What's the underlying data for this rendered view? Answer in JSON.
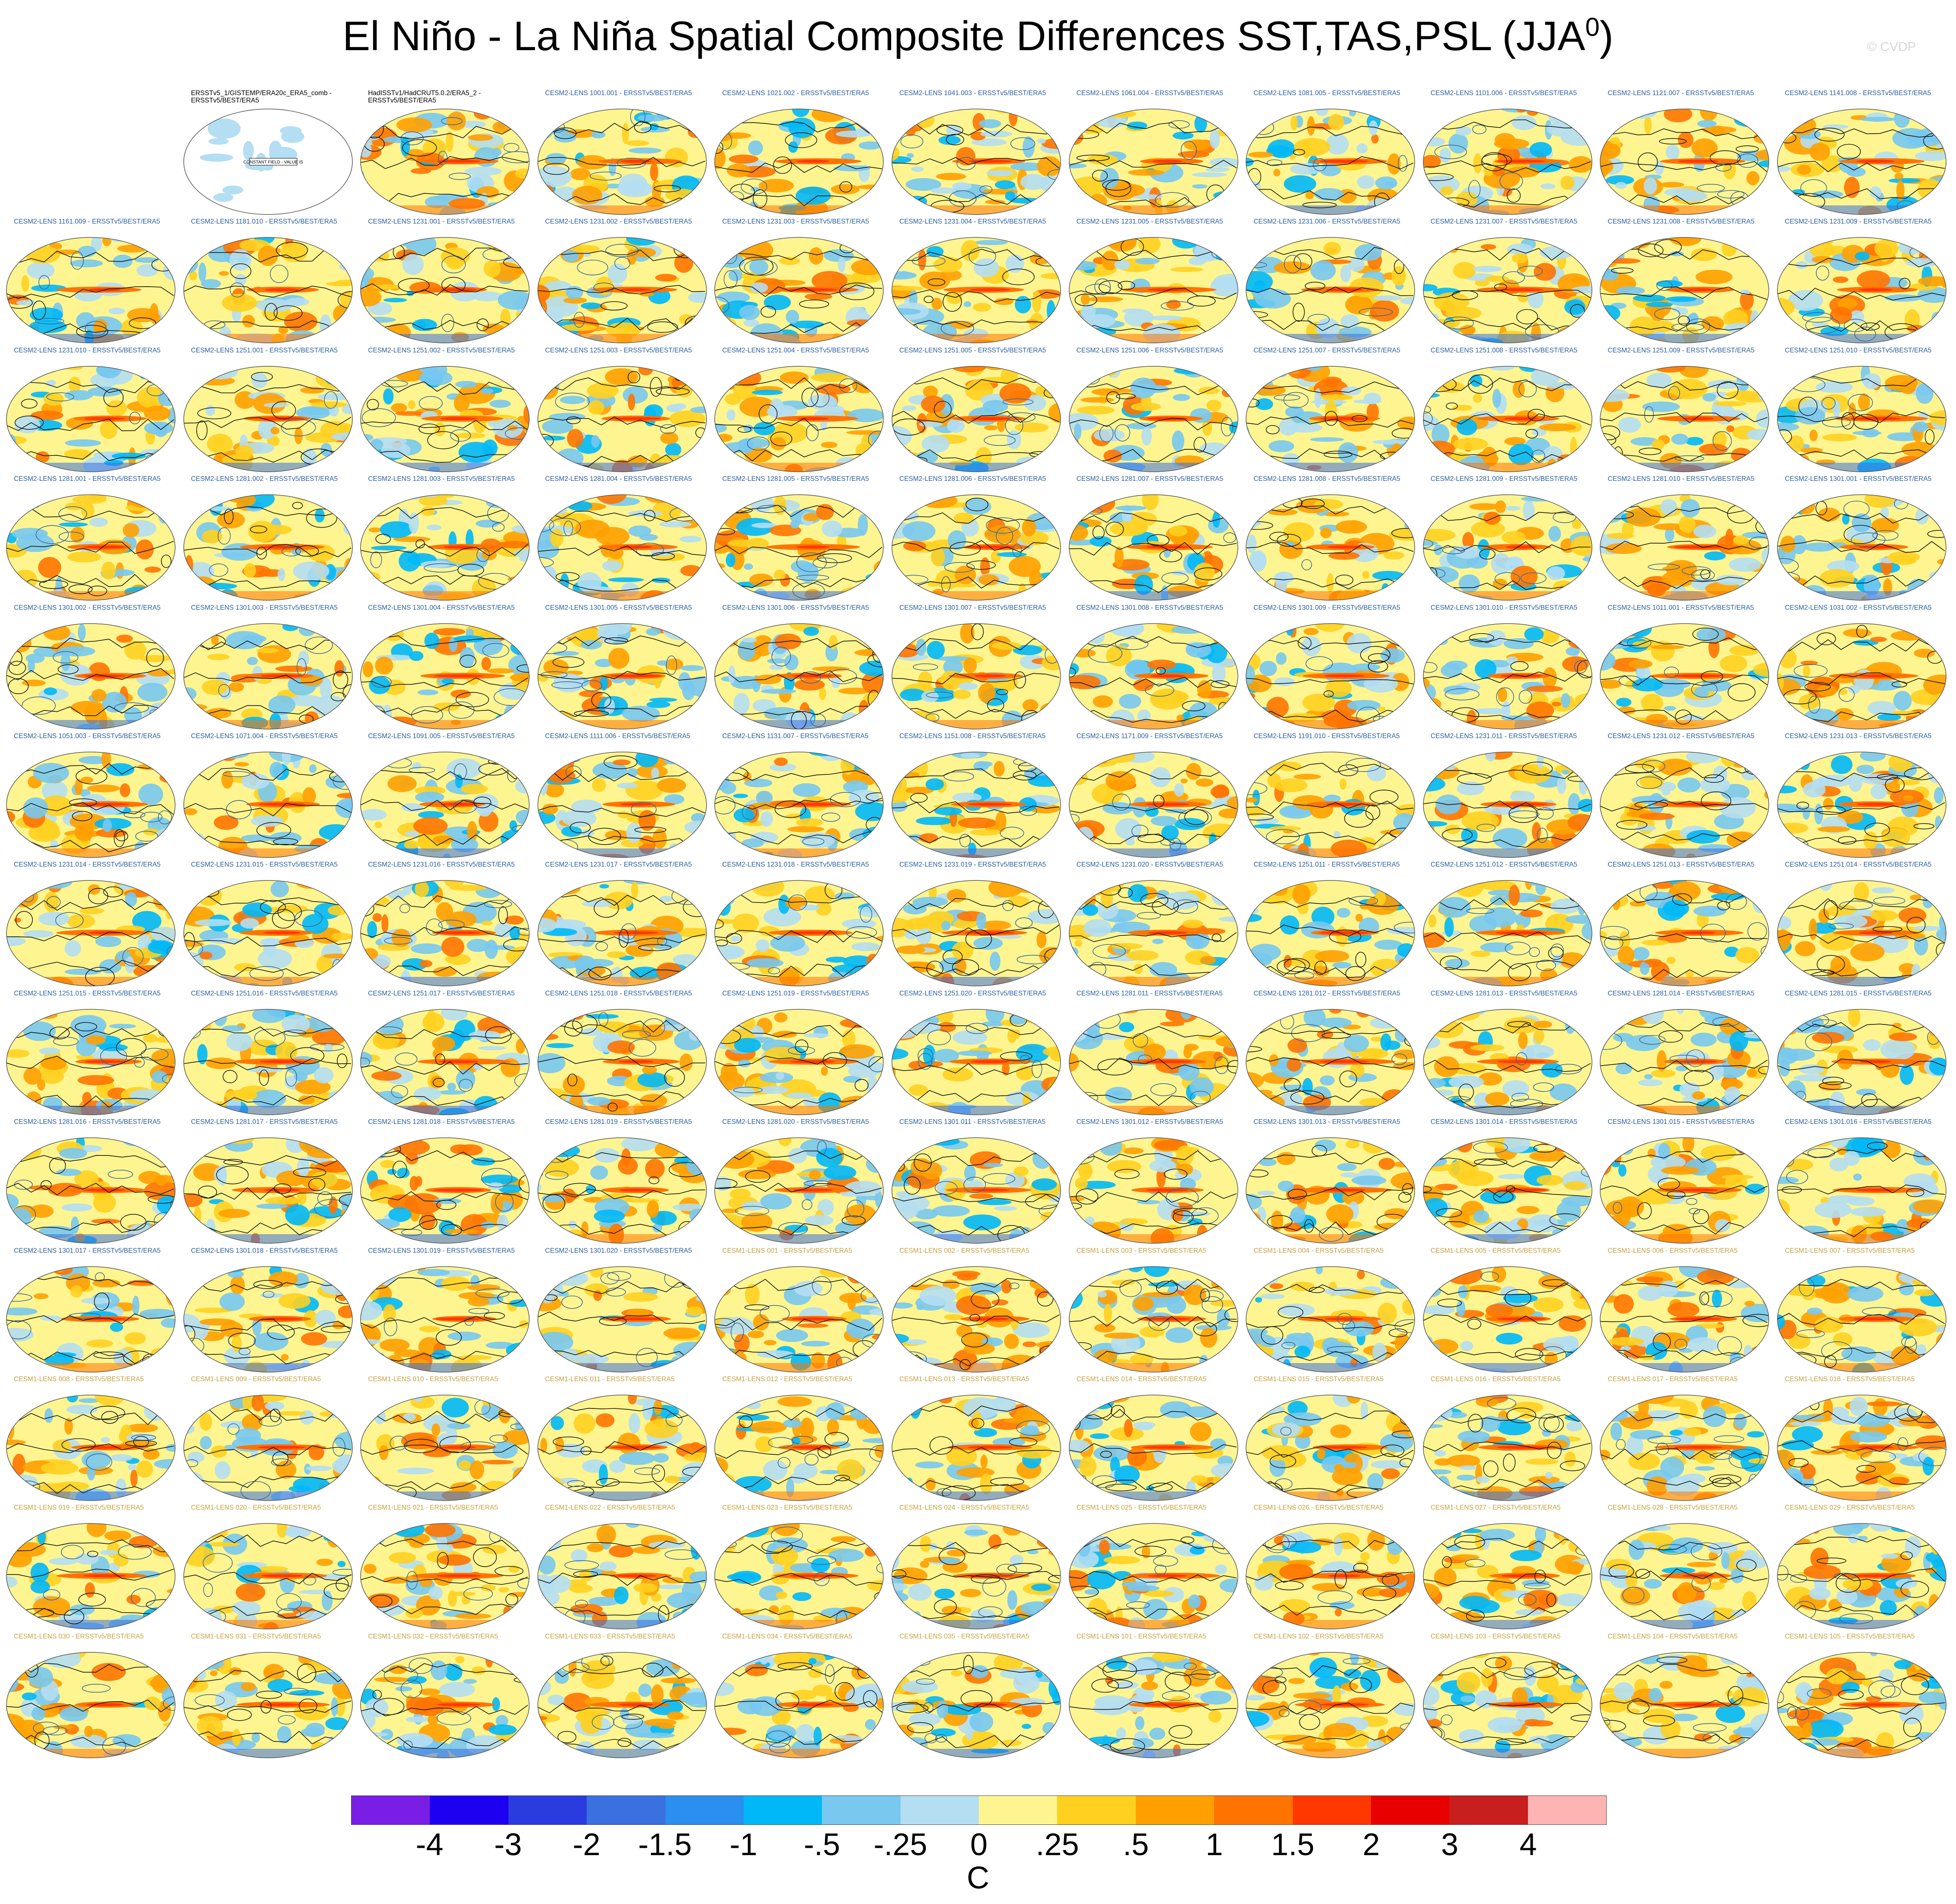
{
  "title": {
    "main": "El Niño - La Niña Spatial Composite Differences SST,TAS,PSL (JJA",
    "superscript": "0",
    "close": ")"
  },
  "watermark": "© CVDP",
  "icons": {
    "map": "globe-map-icon"
  },
  "obs_panel": {
    "note": "CONSTANT FIELD - VALUE IS"
  },
  "panels": [
    "ERSSTv5_1/GISTEMP/ERA20c_ERA5_comb - ERSSTv5/BEST/ERA5",
    "HadISSTv1/HadCRUT5.0.2/ERA5_2 - ERSSTv5/BEST/ERA5",
    "CESM2-LENS 1001.001 - ERSSTv5/BEST/ERA5",
    "CESM2-LENS 1021.002 - ERSSTv5/BEST/ERA5",
    "CESM2-LENS 1041.003 - ERSSTv5/BEST/ERA5",
    "CESM2-LENS 1061.004 - ERSSTv5/BEST/ERA5",
    "CESM2-LENS 1081.005 - ERSSTv5/BEST/ERA5",
    "CESM2-LENS 1101.006 - ERSSTv5/BEST/ERA5",
    "CESM2-LENS 1121.007 - ERSSTv5/BEST/ERA5",
    "CESM2-LENS 1141.008 - ERSSTv5/BEST/ERA5",
    "CESM2-LENS 1161.009 - ERSSTv5/BEST/ERA5",
    "CESM2-LENS 1181.010 - ERSSTv5/BEST/ERA5",
    "CESM2-LENS 1231.001 - ERSSTv5/BEST/ERA5",
    "CESM2-LENS 1231.002 - ERSSTv5/BEST/ERA5",
    "CESM2-LENS 1231.003 - ERSSTv5/BEST/ERA5",
    "CESM2-LENS 1231.004 - ERSSTv5/BEST/ERA5",
    "CESM2-LENS 1231.005 - ERSSTv5/BEST/ERA5",
    "CESM2-LENS 1231.006 - ERSSTv5/BEST/ERA5",
    "CESM2-LENS 1231.007 - ERSSTv5/BEST/ERA5",
    "CESM2-LENS 1231.008 - ERSSTv5/BEST/ERA5",
    "CESM2-LENS 1231.009 - ERSSTv5/BEST/ERA5",
    "CESM2-LENS 1231.010 - ERSSTv5/BEST/ERA5",
    "CESM2-LENS 1251.001 - ERSSTv5/BEST/ERA5",
    "CESM2-LENS 1251.002 - ERSSTv5/BEST/ERA5",
    "CESM2-LENS 1251.003 - ERSSTv5/BEST/ERA5",
    "CESM2-LENS 1251.004 - ERSSTv5/BEST/ERA5",
    "CESM2-LENS 1251.005 - ERSSTv5/BEST/ERA5",
    "CESM2-LENS 1251.006 - ERSSTv5/BEST/ERA5",
    "CESM2-LENS 1251.007 - ERSSTv5/BEST/ERA5",
    "CESM2-LENS 1251.008 - ERSSTv5/BEST/ERA5",
    "CESM2-LENS 1251.009 - ERSSTv5/BEST/ERA5",
    "CESM2-LENS 1251.010 - ERSSTv5/BEST/ERA5",
    "CESM2-LENS 1281.001 - ERSSTv5/BEST/ERA5",
    "CESM2-LENS 1281.002 - ERSSTv5/BEST/ERA5",
    "CESM2-LENS 1281.003 - ERSSTv5/BEST/ERA5",
    "CESM2-LENS 1281.004 - ERSSTv5/BEST/ERA5",
    "CESM2-LENS 1281.005 - ERSSTv5/BEST/ERA5",
    "CESM2-LENS 1281.006 - ERSSTv5/BEST/ERA5",
    "CESM2-LENS 1281.007 - ERSSTv5/BEST/ERA5",
    "CESM2-LENS 1281.008 - ERSSTv5/BEST/ERA5",
    "CESM2-LENS 1281.009 - ERSSTv5/BEST/ERA5",
    "CESM2-LENS 1281.010 - ERSSTv5/BEST/ERA5",
    "CESM2-LENS 1301.001 - ERSSTv5/BEST/ERA5",
    "CESM2-LENS 1301.002 - ERSSTv5/BEST/ERA5",
    "CESM2-LENS 1301.003 - ERSSTv5/BEST/ERA5",
    "CESM2-LENS 1301.004 - ERSSTv5/BEST/ERA5",
    "CESM2-LENS 1301.005 - ERSSTv5/BEST/ERA5",
    "CESM2-LENS 1301.006 - ERSSTv5/BEST/ERA5",
    "CESM2-LENS 1301.007 - ERSSTv5/BEST/ERA5",
    "CESM2-LENS 1301.008 - ERSSTv5/BEST/ERA5",
    "CESM2-LENS 1301.009 - ERSSTv5/BEST/ERA5",
    "CESM2-LENS 1301.010 - ERSSTv5/BEST/ERA5",
    "CESM2-LENS 1011.001 - ERSSTv5/BEST/ERA5",
    "CESM2-LENS 1031.002 - ERSSTv5/BEST/ERA5",
    "CESM2-LENS 1051.003 - ERSSTv5/BEST/ERA5",
    "CESM2-LENS 1071.004 - ERSSTv5/BEST/ERA5",
    "CESM2-LENS 1091.005 - ERSSTv5/BEST/ERA5",
    "CESM2-LENS 1111.006 - ERSSTv5/BEST/ERA5",
    "CESM2-LENS 1131.007 - ERSSTv5/BEST/ERA5",
    "CESM2-LENS 1151.008 - ERSSTv5/BEST/ERA5",
    "CESM2-LENS 1171.009 - ERSSTv5/BEST/ERA5",
    "CESM2-LENS 1191.010 - ERSSTv5/BEST/ERA5",
    "CESM2-LENS 1231.011 - ERSSTv5/BEST/ERA5",
    "CESM2-LENS 1231.012 - ERSSTv5/BEST/ERA5",
    "CESM2-LENS 1231.013 - ERSSTv5/BEST/ERA5",
    "CESM2-LENS 1231.014 - ERSSTv5/BEST/ERA5",
    "CESM2-LENS 1231.015 - ERSSTv5/BEST/ERA5",
    "CESM2-LENS 1231.016 - ERSSTv5/BEST/ERA5",
    "CESM2-LENS 1231.017 - ERSSTv5/BEST/ERA5",
    "CESM2-LENS 1231.018 - ERSSTv5/BEST/ERA5",
    "CESM2-LENS 1231.019 - ERSSTv5/BEST/ERA5",
    "CESM2-LENS 1231.020 - ERSSTv5/BEST/ERA5",
    "CESM2-LENS 1251.011 - ERSSTv5/BEST/ERA5",
    "CESM2-LENS 1251.012 - ERSSTv5/BEST/ERA5",
    "CESM2-LENS 1251.013 - ERSSTv5/BEST/ERA5",
    "CESM2-LENS 1251.014 - ERSSTv5/BEST/ERA5",
    "CESM2-LENS 1251.015 - ERSSTv5/BEST/ERA5",
    "CESM2-LENS 1251.016 - ERSSTv5/BEST/ERA5",
    "CESM2-LENS 1251.017 - ERSSTv5/BEST/ERA5",
    "CESM2-LENS 1251.018 - ERSSTv5/BEST/ERA5",
    "CESM2-LENS 1251.019 - ERSSTv5/BEST/ERA5",
    "CESM2-LENS 1251.020 - ERSSTv5/BEST/ERA5",
    "CESM2-LENS 1281.011 - ERSSTv5/BEST/ERA5",
    "CESM2-LENS 1281.012 - ERSSTv5/BEST/ERA5",
    "CESM2-LENS 1281.013 - ERSSTv5/BEST/ERA5",
    "CESM2-LENS 1281.014 - ERSSTv5/BEST/ERA5",
    "CESM2-LENS 1281.015 - ERSSTv5/BEST/ERA5",
    "CESM2-LENS 1281.016 - ERSSTv5/BEST/ERA5",
    "CESM2-LENS 1281.017 - ERSSTv5/BEST/ERA5",
    "CESM2-LENS 1281.018 - ERSSTv5/BEST/ERA5",
    "CESM2-LENS 1281.019 - ERSSTv5/BEST/ERA5",
    "CESM2-LENS 1281.020 - ERSSTv5/BEST/ERA5",
    "CESM2-LENS 1301.011 - ERSSTv5/BEST/ERA5",
    "CESM2-LENS 1301.012 - ERSSTv5/BEST/ERA5",
    "CESM2-LENS 1301.013 - ERSSTv5/BEST/ERA5",
    "CESM2-LENS 1301.014 - ERSSTv5/BEST/ERA5",
    "CESM2-LENS 1301.015 - ERSSTv5/BEST/ERA5",
    "CESM2-LENS 1301.016 - ERSSTv5/BEST/ERA5",
    "CESM2-LENS 1301.017 - ERSSTv5/BEST/ERA5",
    "CESM2-LENS 1301.018 - ERSSTv5/BEST/ERA5",
    "CESM2-LENS 1301.019 - ERSSTv5/BEST/ERA5",
    "CESM2-LENS 1301.020 - ERSSTv5/BEST/ERA5",
    "CESM1-LENS 001 - ERSSTv5/BEST/ERA5",
    "CESM1-LENS 002 - ERSSTv5/BEST/ERA5",
    "CESM1-LENS 003 - ERSSTv5/BEST/ERA5",
    "CESM1-LENS 004 - ERSSTv5/BEST/ERA5",
    "CESM1-LENS 005 - ERSSTv5/BEST/ERA5",
    "CESM1-LENS 006 - ERSSTv5/BEST/ERA5",
    "CESM1-LENS 007 - ERSSTv5/BEST/ERA5",
    "CESM1-LENS 008 - ERSSTv5/BEST/ERA5",
    "CESM1-LENS 009 - ERSSTv5/BEST/ERA5",
    "CESM1-LENS 010 - ERSSTv5/BEST/ERA5",
    "CESM1-LENS 011 - ERSSTv5/BEST/ERA5",
    "CESM1-LENS 012 - ERSSTv5/BEST/ERA5",
    "CESM1-LENS 013 - ERSSTv5/BEST/ERA5",
    "CESM1-LENS 014 - ERSSTv5/BEST/ERA5",
    "CESM1-LENS 015 - ERSSTv5/BEST/ERA5",
    "CESM1-LENS 016 - ERSSTv5/BEST/ERA5",
    "CESM1-LENS 017 - ERSSTv5/BEST/ERA5",
    "CESM1-LENS 018 - ERSSTv5/BEST/ERA5",
    "CESM1-LENS 019 - ERSSTv5/BEST/ERA5",
    "CESM1-LENS 020 - ERSSTv5/BEST/ERA5",
    "CESM1-LENS 021 - ERSSTv5/BEST/ERA5",
    "CESM1-LENS 022 - ERSSTv5/BEST/ERA5",
    "CESM1-LENS 023 - ERSSTv5/BEST/ERA5",
    "CESM1-LENS 024 - ERSSTv5/BEST/ERA5",
    "CESM1-LENS 025 - ERSSTv5/BEST/ERA5",
    "CESM1-LENS 026 - ERSSTv5/BEST/ERA5",
    "CESM1-LENS 027 - ERSSTv5/BEST/ERA5",
    "CESM1-LENS 028 - ERSSTv5/BEST/ERA5",
    "CESM1-LENS 029 - ERSSTv5/BEST/ERA5",
    "CESM1-LENS 030 - ERSSTv5/BEST/ERA5",
    "CESM1-LENS 031 - ERSSTv5/BEST/ERA5",
    "CESM1-LENS 032 - ERSSTv5/BEST/ERA5",
    "CESM1-LENS 033 - ERSSTv5/BEST/ERA5",
    "CESM1-LENS 034 - ERSSTv5/BEST/ERA5",
    "CESM1-LENS 035 - ERSSTv5/BEST/ERA5",
    "CESM1-LENS 101 - ERSSTv5/BEST/ERA5",
    "CESM1-LENS 102 - ERSSTv5/BEST/ERA5",
    "CESM1-LENS 103 - ERSSTv5/BEST/ERA5",
    "CESM1-LENS 104 - ERSSTv5/BEST/ERA5",
    "CESM1-LENS 105 - ERSSTv5/BEST/ERA5"
  ],
  "colorbar": {
    "colors": [
      "#7a1ee6",
      "#1e00f0",
      "#2a3ce0",
      "#3a70e0",
      "#2a8ff0",
      "#00b8f8",
      "#78c8f0",
      "#b4def2",
      "#fff590",
      "#ffd020",
      "#ffa000",
      "#ff7400",
      "#ff3800",
      "#e80000",
      "#c81e1e",
      "#ffb4b4"
    ],
    "ticks": [
      "-4",
      "-3",
      "-2",
      "-1.5",
      "-1",
      "-.5",
      "-.25",
      "0",
      ".25",
      ".5",
      "1",
      "1.5",
      "2",
      "3",
      "4"
    ],
    "units": "C"
  }
}
